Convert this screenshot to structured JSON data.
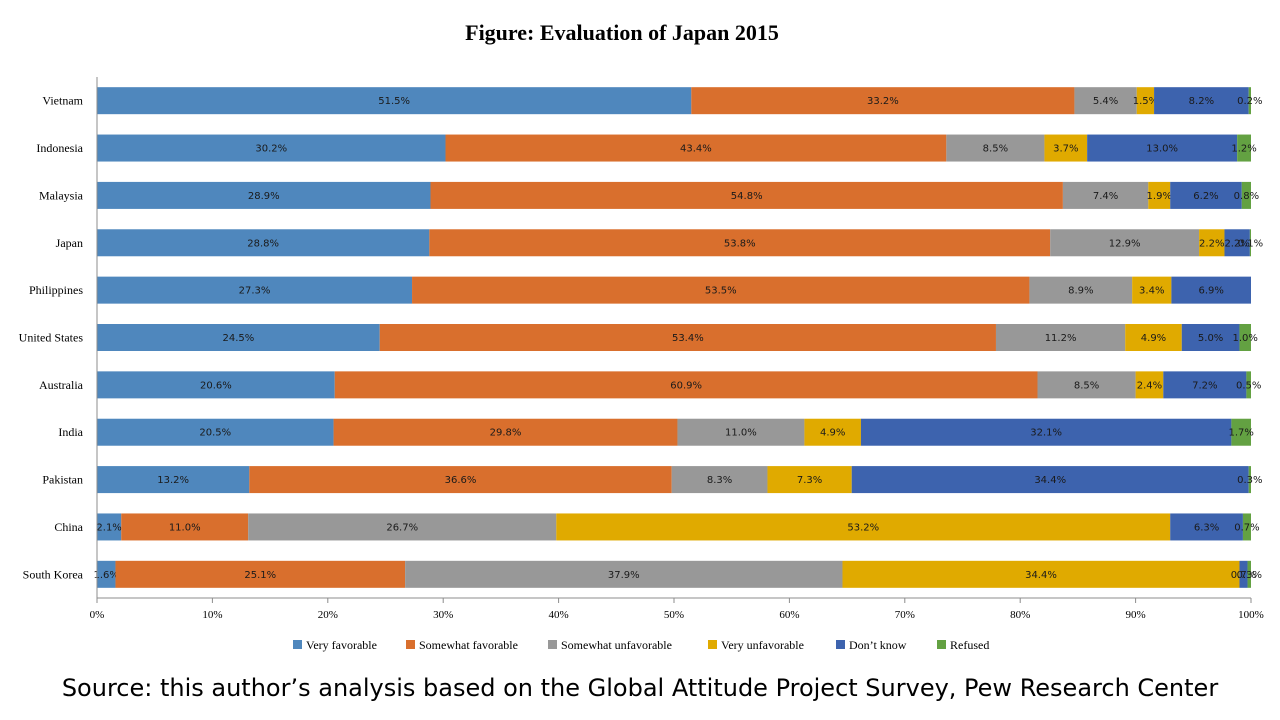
{
  "colors": {
    "very_favorable": "#4f87bd",
    "somewhat_favorable": "#d96f2d",
    "somewhat_unfavorable": "#989898",
    "very_unfavorable": "#e0aa00",
    "dont_know": "#3d63ae",
    "refused": "#63a142"
  },
  "source": "Source: this author’s analysis based on the Global Attitude Project Survey, Pew Research Center",
  "chart_data": {
    "type": "bar",
    "orientation": "horizontal",
    "stacked": "percent",
    "title": "Figure: Evaluation of Japan 2015",
    "categories": [
      "Vietnam",
      "Indonesia",
      "Malaysia",
      "Japan",
      "Philippines",
      "United States",
      "Australia",
      "India",
      "Pakistan",
      "China",
      "South Korea"
    ],
    "series": [
      {
        "name": "Very favorable",
        "color": "#4f87bd",
        "values": [
          51.5,
          30.2,
          28.9,
          28.8,
          27.3,
          24.5,
          20.6,
          20.5,
          13.2,
          2.1,
          1.6
        ],
        "labels": [
          "51.5%",
          "30.2%",
          "28.9%",
          "28.8%",
          "27.3%",
          "24.5%",
          "20.6%",
          "20.5%",
          "13.2%",
          "2.1%",
          "1.6%"
        ]
      },
      {
        "name": "Somewhat favorable",
        "color": "#d96f2d",
        "values": [
          33.2,
          43.4,
          54.8,
          53.8,
          53.5,
          53.4,
          60.9,
          29.8,
          36.6,
          11.0,
          25.1
        ],
        "labels": [
          "33.2%",
          "43.4%",
          "54.8%",
          "53.8%",
          "53.5%",
          "53.4%",
          "60.9%",
          "29.8%",
          "36.6%",
          "11.0%",
          "25.1%"
        ]
      },
      {
        "name": "Somewhat unfavorable",
        "color": "#989898",
        "values": [
          5.4,
          8.5,
          7.4,
          12.9,
          8.9,
          11.2,
          8.5,
          11.0,
          8.3,
          26.7,
          37.9
        ],
        "labels": [
          "5.4%",
          "8.5%",
          "7.4%",
          "12.9%",
          "8.9%",
          "11.2%",
          "8.5%",
          "11.0%",
          "8.3%",
          "26.7%",
          "37.9%"
        ]
      },
      {
        "name": "Very unfavorable",
        "color": "#e0aa00",
        "values": [
          1.5,
          3.7,
          1.9,
          2.2,
          3.4,
          4.9,
          2.4,
          4.9,
          7.3,
          53.2,
          34.4
        ],
        "labels": [
          "1.5%",
          "3.7%",
          "1.9%",
          "2.2%",
          "3.4%",
          "4.9%",
          "2.4%",
          "4.9%",
          "7.3%",
          "53.2%",
          "34.4%"
        ]
      },
      {
        "name": "Don’t know",
        "color": "#3d63ae",
        "values": [
          8.2,
          13.0,
          6.2,
          2.2,
          6.9,
          5.0,
          7.2,
          32.1,
          34.4,
          6.3,
          0.7
        ],
        "labels": [
          "8.2%",
          "13.0%",
          "6.2%",
          "2.2%",
          "6.9%",
          "5.0%",
          "7.2%",
          "32.1%",
          "34.4%",
          "6.3%",
          "0.7%"
        ]
      },
      {
        "name": "Refused",
        "color": "#63a142",
        "values": [
          0.2,
          1.2,
          0.8,
          0.1,
          0.0,
          1.0,
          0.5,
          1.7,
          0.3,
          0.7,
          0.3
        ],
        "labels": [
          "0.2%",
          "1.2%",
          "0.8%",
          "0.1%",
          "",
          "1.0%",
          "0.5%",
          "1.7%",
          "0.3%",
          "0.7%",
          "0.3%"
        ]
      }
    ],
    "x_ticks": [
      "0%",
      "10%",
      "20%",
      "30%",
      "40%",
      "50%",
      "60%",
      "70%",
      "80%",
      "90%",
      "100%"
    ],
    "xlim": [
      0,
      100
    ],
    "grid": false,
    "legend_position": "bottom"
  }
}
